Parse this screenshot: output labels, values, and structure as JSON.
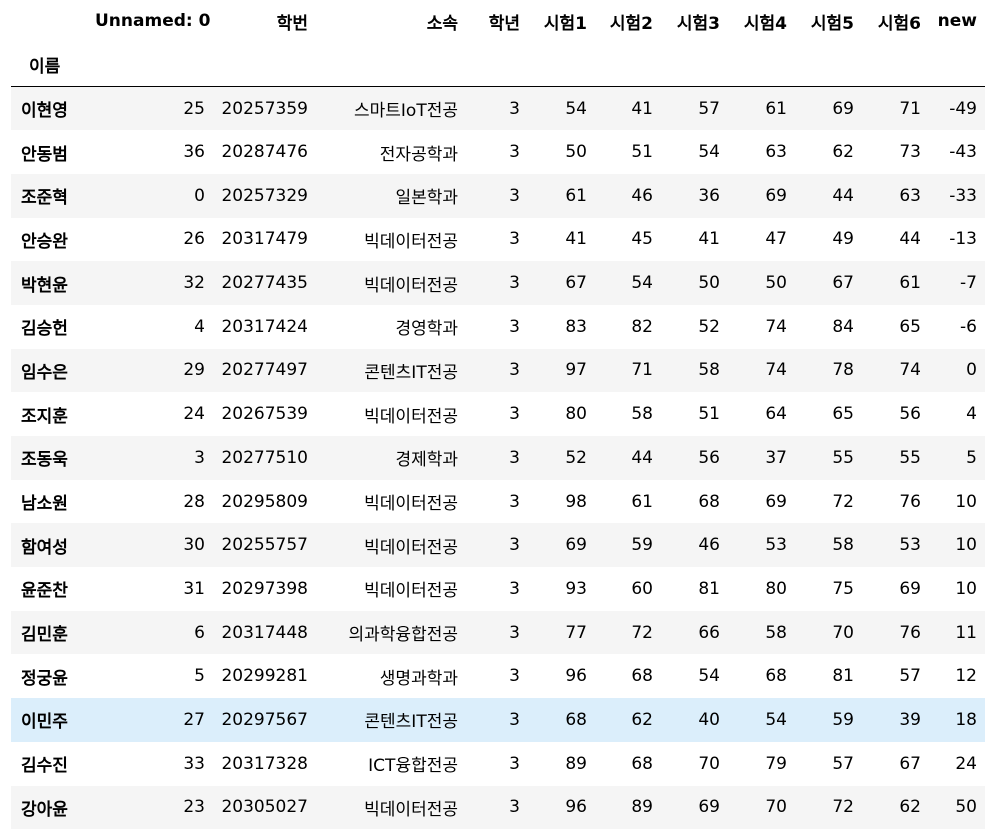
{
  "table": {
    "index_name": "이름",
    "columns": [
      "Unnamed: 0",
      "학번",
      "소속",
      "학년",
      "시험1",
      "시험2",
      "시험3",
      "시험4",
      "시험5",
      "시험6",
      "new"
    ],
    "hover_row_index": 14,
    "rows": [
      {
        "name": "이현영",
        "cells": [
          "25",
          "20257359",
          "스마트IoT전공",
          "3",
          "54",
          "41",
          "57",
          "61",
          "69",
          "71",
          "-49"
        ]
      },
      {
        "name": "안동범",
        "cells": [
          "36",
          "20287476",
          "전자공학과",
          "3",
          "50",
          "51",
          "54",
          "63",
          "62",
          "73",
          "-43"
        ]
      },
      {
        "name": "조준혁",
        "cells": [
          "0",
          "20257329",
          "일본학과",
          "3",
          "61",
          "46",
          "36",
          "69",
          "44",
          "63",
          "-33"
        ]
      },
      {
        "name": "안승완",
        "cells": [
          "26",
          "20317479",
          "빅데이터전공",
          "3",
          "41",
          "45",
          "41",
          "47",
          "49",
          "44",
          "-13"
        ]
      },
      {
        "name": "박현윤",
        "cells": [
          "32",
          "20277435",
          "빅데이터전공",
          "3",
          "67",
          "54",
          "50",
          "50",
          "67",
          "61",
          "-7"
        ]
      },
      {
        "name": "김승헌",
        "cells": [
          "4",
          "20317424",
          "경영학과",
          "3",
          "83",
          "82",
          "52",
          "74",
          "84",
          "65",
          "-6"
        ]
      },
      {
        "name": "임수은",
        "cells": [
          "29",
          "20277497",
          "콘텐츠IT전공",
          "3",
          "97",
          "71",
          "58",
          "74",
          "78",
          "74",
          "0"
        ]
      },
      {
        "name": "조지훈",
        "cells": [
          "24",
          "20267539",
          "빅데이터전공",
          "3",
          "80",
          "58",
          "51",
          "64",
          "65",
          "56",
          "4"
        ]
      },
      {
        "name": "조동욱",
        "cells": [
          "3",
          "20277510",
          "경제학과",
          "3",
          "52",
          "44",
          "56",
          "37",
          "55",
          "55",
          "5"
        ]
      },
      {
        "name": "남소원",
        "cells": [
          "28",
          "20295809",
          "빅데이터전공",
          "3",
          "98",
          "61",
          "68",
          "69",
          "72",
          "76",
          "10"
        ]
      },
      {
        "name": "함여성",
        "cells": [
          "30",
          "20255757",
          "빅데이터전공",
          "3",
          "69",
          "59",
          "46",
          "53",
          "58",
          "53",
          "10"
        ]
      },
      {
        "name": "윤준찬",
        "cells": [
          "31",
          "20297398",
          "빅데이터전공",
          "3",
          "93",
          "60",
          "81",
          "80",
          "75",
          "69",
          "10"
        ]
      },
      {
        "name": "김민훈",
        "cells": [
          "6",
          "20317448",
          "의과학융합전공",
          "3",
          "77",
          "72",
          "66",
          "58",
          "70",
          "76",
          "11"
        ]
      },
      {
        "name": "정궁윤",
        "cells": [
          "5",
          "20299281",
          "생명과학과",
          "3",
          "96",
          "68",
          "54",
          "68",
          "81",
          "57",
          "12"
        ]
      },
      {
        "name": "이민주",
        "cells": [
          "27",
          "20297567",
          "콘텐츠IT전공",
          "3",
          "68",
          "62",
          "40",
          "54",
          "59",
          "39",
          "18"
        ]
      },
      {
        "name": "김수진",
        "cells": [
          "33",
          "20317328",
          "ICT융합전공",
          "3",
          "89",
          "68",
          "70",
          "79",
          "57",
          "67",
          "24"
        ]
      },
      {
        "name": "강아윤",
        "cells": [
          "23",
          "20305027",
          "빅데이터전공",
          "3",
          "96",
          "89",
          "69",
          "70",
          "72",
          "62",
          "50"
        ]
      }
    ]
  }
}
